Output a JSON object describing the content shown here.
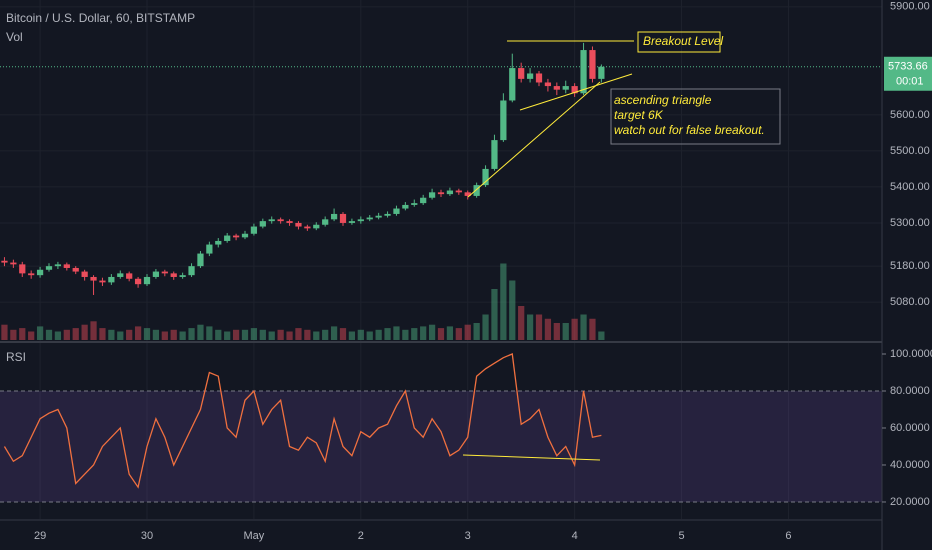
{
  "chart_data": {
    "type": "candlestick",
    "title": "Bitcoin / U.S. Dollar, 60, BITSTAMP",
    "volume_label": "Vol",
    "up_color": "#53b987",
    "down_color": "#eb4d5c",
    "x": [
      16,
      18,
      20,
      22,
      24,
      26,
      28,
      30,
      32,
      34,
      36,
      38,
      40,
      42,
      44,
      46,
      48,
      50,
      52,
      54,
      56,
      58,
      60,
      62,
      64,
      66,
      68,
      70,
      72,
      74,
      76,
      78,
      80,
      82,
      84,
      86,
      88,
      90,
      92,
      94,
      96,
      98,
      100,
      102,
      104,
      106,
      108,
      110,
      112,
      114,
      116,
      118,
      120,
      122,
      124,
      126,
      128,
      130,
      132,
      134,
      136,
      138,
      140,
      142,
      144,
      146,
      148,
      150
    ],
    "open": [
      5195,
      5190,
      5185,
      5160,
      5155,
      5170,
      5180,
      5185,
      5175,
      5165,
      5150,
      5140,
      5135,
      5150,
      5160,
      5145,
      5130,
      5150,
      5165,
      5160,
      5150,
      5155,
      5180,
      5215,
      5240,
      5250,
      5265,
      5260,
      5270,
      5290,
      5305,
      5310,
      5305,
      5300,
      5290,
      5285,
      5295,
      5310,
      5325,
      5300,
      5305,
      5310,
      5315,
      5320,
      5325,
      5340,
      5350,
      5355,
      5370,
      5385,
      5380,
      5390,
      5385,
      5375,
      5405,
      5450,
      5530,
      5640,
      5730,
      5700,
      5715,
      5690,
      5680,
      5670,
      5680,
      5660,
      5780,
      5700
    ],
    "high": [
      5205,
      5198,
      5192,
      5168,
      5178,
      5188,
      5192,
      5190,
      5180,
      5170,
      5155,
      5148,
      5158,
      5168,
      5165,
      5150,
      5158,
      5172,
      5170,
      5165,
      5162,
      5188,
      5222,
      5248,
      5258,
      5272,
      5270,
      5278,
      5298,
      5312,
      5318,
      5315,
      5310,
      5305,
      5295,
      5302,
      5318,
      5340,
      5330,
      5312,
      5318,
      5322,
      5328,
      5332,
      5348,
      5358,
      5365,
      5378,
      5395,
      5392,
      5398,
      5395,
      5390,
      5412,
      5460,
      5545,
      5660,
      5770,
      5745,
      5730,
      5722,
      5700,
      5690,
      5695,
      5688,
      5800,
      5790,
      5740
    ],
    "low": [
      5180,
      5175,
      5150,
      5145,
      5148,
      5165,
      5172,
      5168,
      5158,
      5140,
      5100,
      5125,
      5128,
      5145,
      5138,
      5120,
      5125,
      5145,
      5152,
      5142,
      5145,
      5150,
      5175,
      5208,
      5232,
      5245,
      5252,
      5255,
      5265,
      5285,
      5298,
      5298,
      5292,
      5282,
      5278,
      5280,
      5290,
      5305,
      5292,
      5295,
      5298,
      5305,
      5310,
      5315,
      5320,
      5335,
      5345,
      5350,
      5365,
      5372,
      5375,
      5378,
      5365,
      5370,
      5400,
      5445,
      5525,
      5635,
      5690,
      5690,
      5680,
      5665,
      5655,
      5660,
      5650,
      5655,
      5690,
      5690
    ],
    "close": [
      5190,
      5185,
      5160,
      5155,
      5170,
      5180,
      5185,
      5175,
      5165,
      5150,
      5140,
      5135,
      5150,
      5160,
      5145,
      5130,
      5150,
      5165,
      5160,
      5150,
      5155,
      5180,
      5215,
      5240,
      5250,
      5265,
      5260,
      5270,
      5290,
      5305,
      5310,
      5305,
      5300,
      5290,
      5285,
      5295,
      5310,
      5325,
      5300,
      5305,
      5310,
      5315,
      5320,
      5325,
      5340,
      5350,
      5355,
      5370,
      5385,
      5380,
      5390,
      5385,
      5375,
      5405,
      5450,
      5530,
      5640,
      5730,
      5700,
      5715,
      5690,
      5680,
      5670,
      5680,
      5660,
      5780,
      5700,
      5733.66
    ],
    "volume": [
      18,
      12,
      14,
      10,
      16,
      12,
      10,
      12,
      14,
      18,
      22,
      14,
      12,
      10,
      12,
      16,
      14,
      12,
      10,
      12,
      10,
      14,
      18,
      16,
      12,
      10,
      12,
      12,
      14,
      12,
      10,
      12,
      10,
      14,
      12,
      10,
      12,
      16,
      14,
      10,
      12,
      10,
      12,
      14,
      16,
      12,
      14,
      16,
      18,
      14,
      16,
      14,
      18,
      20,
      30,
      60,
      90,
      70,
      40,
      30,
      30,
      25,
      20,
      20,
      25,
      30,
      25,
      10
    ],
    "xlim": [
      15,
      213
    ],
    "xticks": [
      {
        "value": 24,
        "label": "29"
      },
      {
        "value": 48,
        "label": "30"
      },
      {
        "value": 72,
        "label": "May"
      },
      {
        "value": 96,
        "label": "2"
      },
      {
        "value": 120,
        "label": "3"
      },
      {
        "value": 144,
        "label": "4"
      },
      {
        "value": 168,
        "label": "5"
      },
      {
        "value": 192,
        "label": "6"
      }
    ],
    "ylim": [
      4975,
      5919
    ],
    "yticks": [
      {
        "value": 5900,
        "label": "5900.00"
      },
      {
        "value": 5600,
        "label": "5600.00"
      },
      {
        "value": 5500,
        "label": "5500.00"
      },
      {
        "value": 5400,
        "label": "5400.00"
      },
      {
        "value": 5300,
        "label": "5300.00"
      },
      {
        "value": 5180,
        "label": "5180.00"
      },
      {
        "value": 5080,
        "label": "5080.00"
      }
    ],
    "grid": true,
    "countdown": "00:01",
    "annotations": {
      "breakout": "Breakout Level",
      "note": [
        "ascending triangle",
        "target 6K",
        "watch out for false breakout."
      ]
    },
    "rsi": {
      "name": "RSI",
      "color": "#f0703f",
      "values": [
        50,
        42,
        45,
        55,
        65,
        68,
        70,
        60,
        30,
        35,
        40,
        50,
        55,
        60,
        35,
        28,
        50,
        65,
        55,
        40,
        50,
        60,
        70,
        90,
        88,
        60,
        55,
        75,
        80,
        62,
        70,
        75,
        50,
        48,
        55,
        52,
        42,
        65,
        50,
        45,
        58,
        55,
        60,
        62,
        72,
        80,
        60,
        55,
        65,
        58,
        45,
        48,
        55,
        88,
        92,
        95,
        98,
        100,
        62,
        65,
        70,
        55,
        45,
        50,
        40,
        80,
        55,
        56
      ],
      "ylim": [
        10.8,
        105.4
      ],
      "yticks": [
        {
          "value": 100,
          "label": "100.0000"
        },
        {
          "value": 80,
          "label": "80.0000"
        },
        {
          "value": 60,
          "label": "60.0000"
        },
        {
          "value": 40,
          "label": "40.0000"
        },
        {
          "value": 20,
          "label": "20.0000"
        }
      ],
      "band": [
        20,
        80
      ]
    }
  }
}
